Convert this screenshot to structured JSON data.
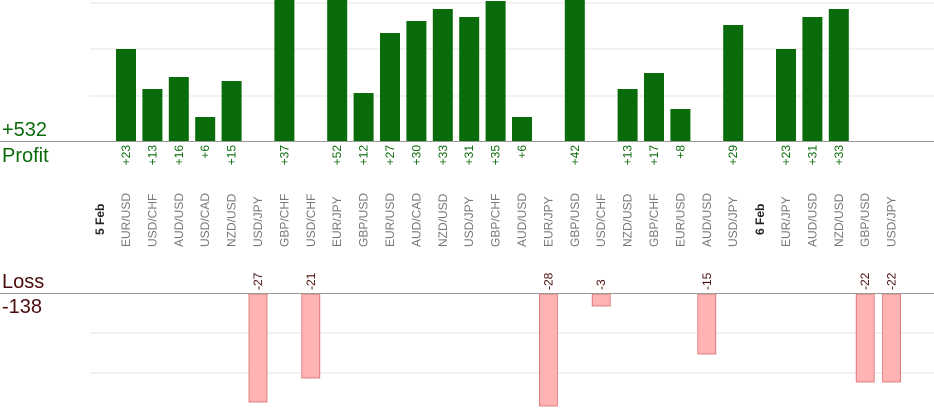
{
  "summary": {
    "profit_total": "+532",
    "profit_label": "Profit",
    "loss_label": "Loss",
    "loss_total": "-138"
  },
  "colors": {
    "profit_bar": "#0a6b0a",
    "profit_text": "#0a6b0a",
    "loss_bar": "#ffb3b3",
    "loss_bar_edge": "#d96b6b",
    "loss_text": "#4a0d0d",
    "grid": "#e6e6e6",
    "baseline": "#999999",
    "pair_label": "#777777",
    "date_label": "#222222"
  },
  "chart_data": {
    "type": "bar",
    "title": "",
    "grid": true,
    "date_markers": [
      {
        "label": "5 Feb",
        "before_index": 0
      },
      {
        "label": "6 Feb",
        "before_index": 24
      }
    ],
    "trades": [
      {
        "pair": "EUR/USD",
        "value": 23
      },
      {
        "pair": "USD/CHF",
        "value": 13
      },
      {
        "pair": "AUD/USD",
        "value": 16
      },
      {
        "pair": "USD/CAD",
        "value": 6
      },
      {
        "pair": "NZD/USD",
        "value": 15
      },
      {
        "pair": "USD/JPY",
        "value": -27
      },
      {
        "pair": "GBP/CHF",
        "value": 37
      },
      {
        "pair": "USD/CHF",
        "value": -21
      },
      {
        "pair": "EUR/JPY",
        "value": 52
      },
      {
        "pair": "GBP/USD",
        "value": 12
      },
      {
        "pair": "EUR/USD",
        "value": 27
      },
      {
        "pair": "AUD/CAD",
        "value": 30
      },
      {
        "pair": "NZD/USD",
        "value": 33
      },
      {
        "pair": "USD/JPY",
        "value": 31
      },
      {
        "pair": "GBP/CHF",
        "value": 35
      },
      {
        "pair": "AUD/USD",
        "value": 6
      },
      {
        "pair": "EUR/JPY",
        "value": -28
      },
      {
        "pair": "GBP/USD",
        "value": 42
      },
      {
        "pair": "USD/CHF",
        "value": -3
      },
      {
        "pair": "NZD/USD",
        "value": 13
      },
      {
        "pair": "GBP/CHF",
        "value": 17
      },
      {
        "pair": "EUR/USD",
        "value": 8
      },
      {
        "pair": "AUD/USD",
        "value": -15
      },
      {
        "pair": "USD/JPY",
        "value": 29
      },
      {
        "pair": "EUR/JPY",
        "value": 23
      },
      {
        "pair": "AUD/USD",
        "value": 31
      },
      {
        "pair": "NZD/USD",
        "value": 33
      },
      {
        "pair": "GBP/USD",
        "value": -22
      },
      {
        "pair": "USD/JPY",
        "value": -22
      }
    ]
  }
}
